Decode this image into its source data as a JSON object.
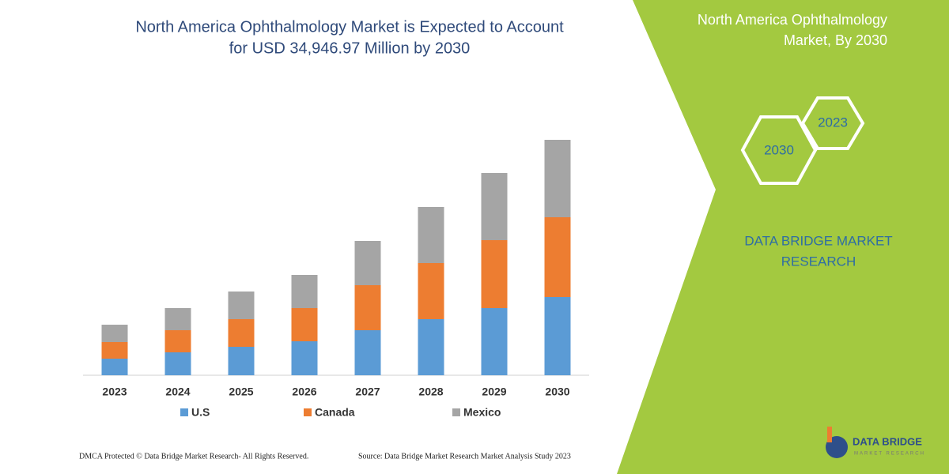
{
  "chart_data": {
    "type": "stacked-bar",
    "title": [
      "North America Ophthalmology Market is Expected to Account",
      "for USD 34,946.97 Million by 2030"
    ],
    "categories": [
      "2023",
      "2024",
      "2025",
      "2026",
      "2027",
      "2028",
      "2029",
      "2030"
    ],
    "series": [
      {
        "name": "U.S",
        "color": "#5b9bd5",
        "values": [
          21,
          29,
          36,
          43,
          57,
          71,
          85,
          99
        ]
      },
      {
        "name": "Canada",
        "color": "#ed7d31",
        "values": [
          21,
          28,
          35,
          42,
          57,
          71,
          86,
          101
        ]
      },
      {
        "name": "Mexico",
        "color": "#a5a5a5",
        "values": [
          22,
          28,
          35,
          42,
          56,
          71,
          85,
          98
        ]
      }
    ],
    "ylim": [
      0,
      300
    ]
  },
  "panel": {
    "heading": [
      "North America Ophthalmology",
      "Market, By 2030"
    ],
    "hex_years": [
      "2023",
      "2030"
    ],
    "brand": [
      "DATA BRIDGE MARKET",
      "RESEARCH"
    ]
  },
  "footer": {
    "left": "DMCA Protected © Data Bridge Market Research-  All Rights Reserved.",
    "right": "Source: Data Bridge Market Research  Market Analysis Study 2023"
  },
  "logo": {
    "name": "DATA BRIDGE",
    "tagline": "MARKET RESEARCH"
  }
}
